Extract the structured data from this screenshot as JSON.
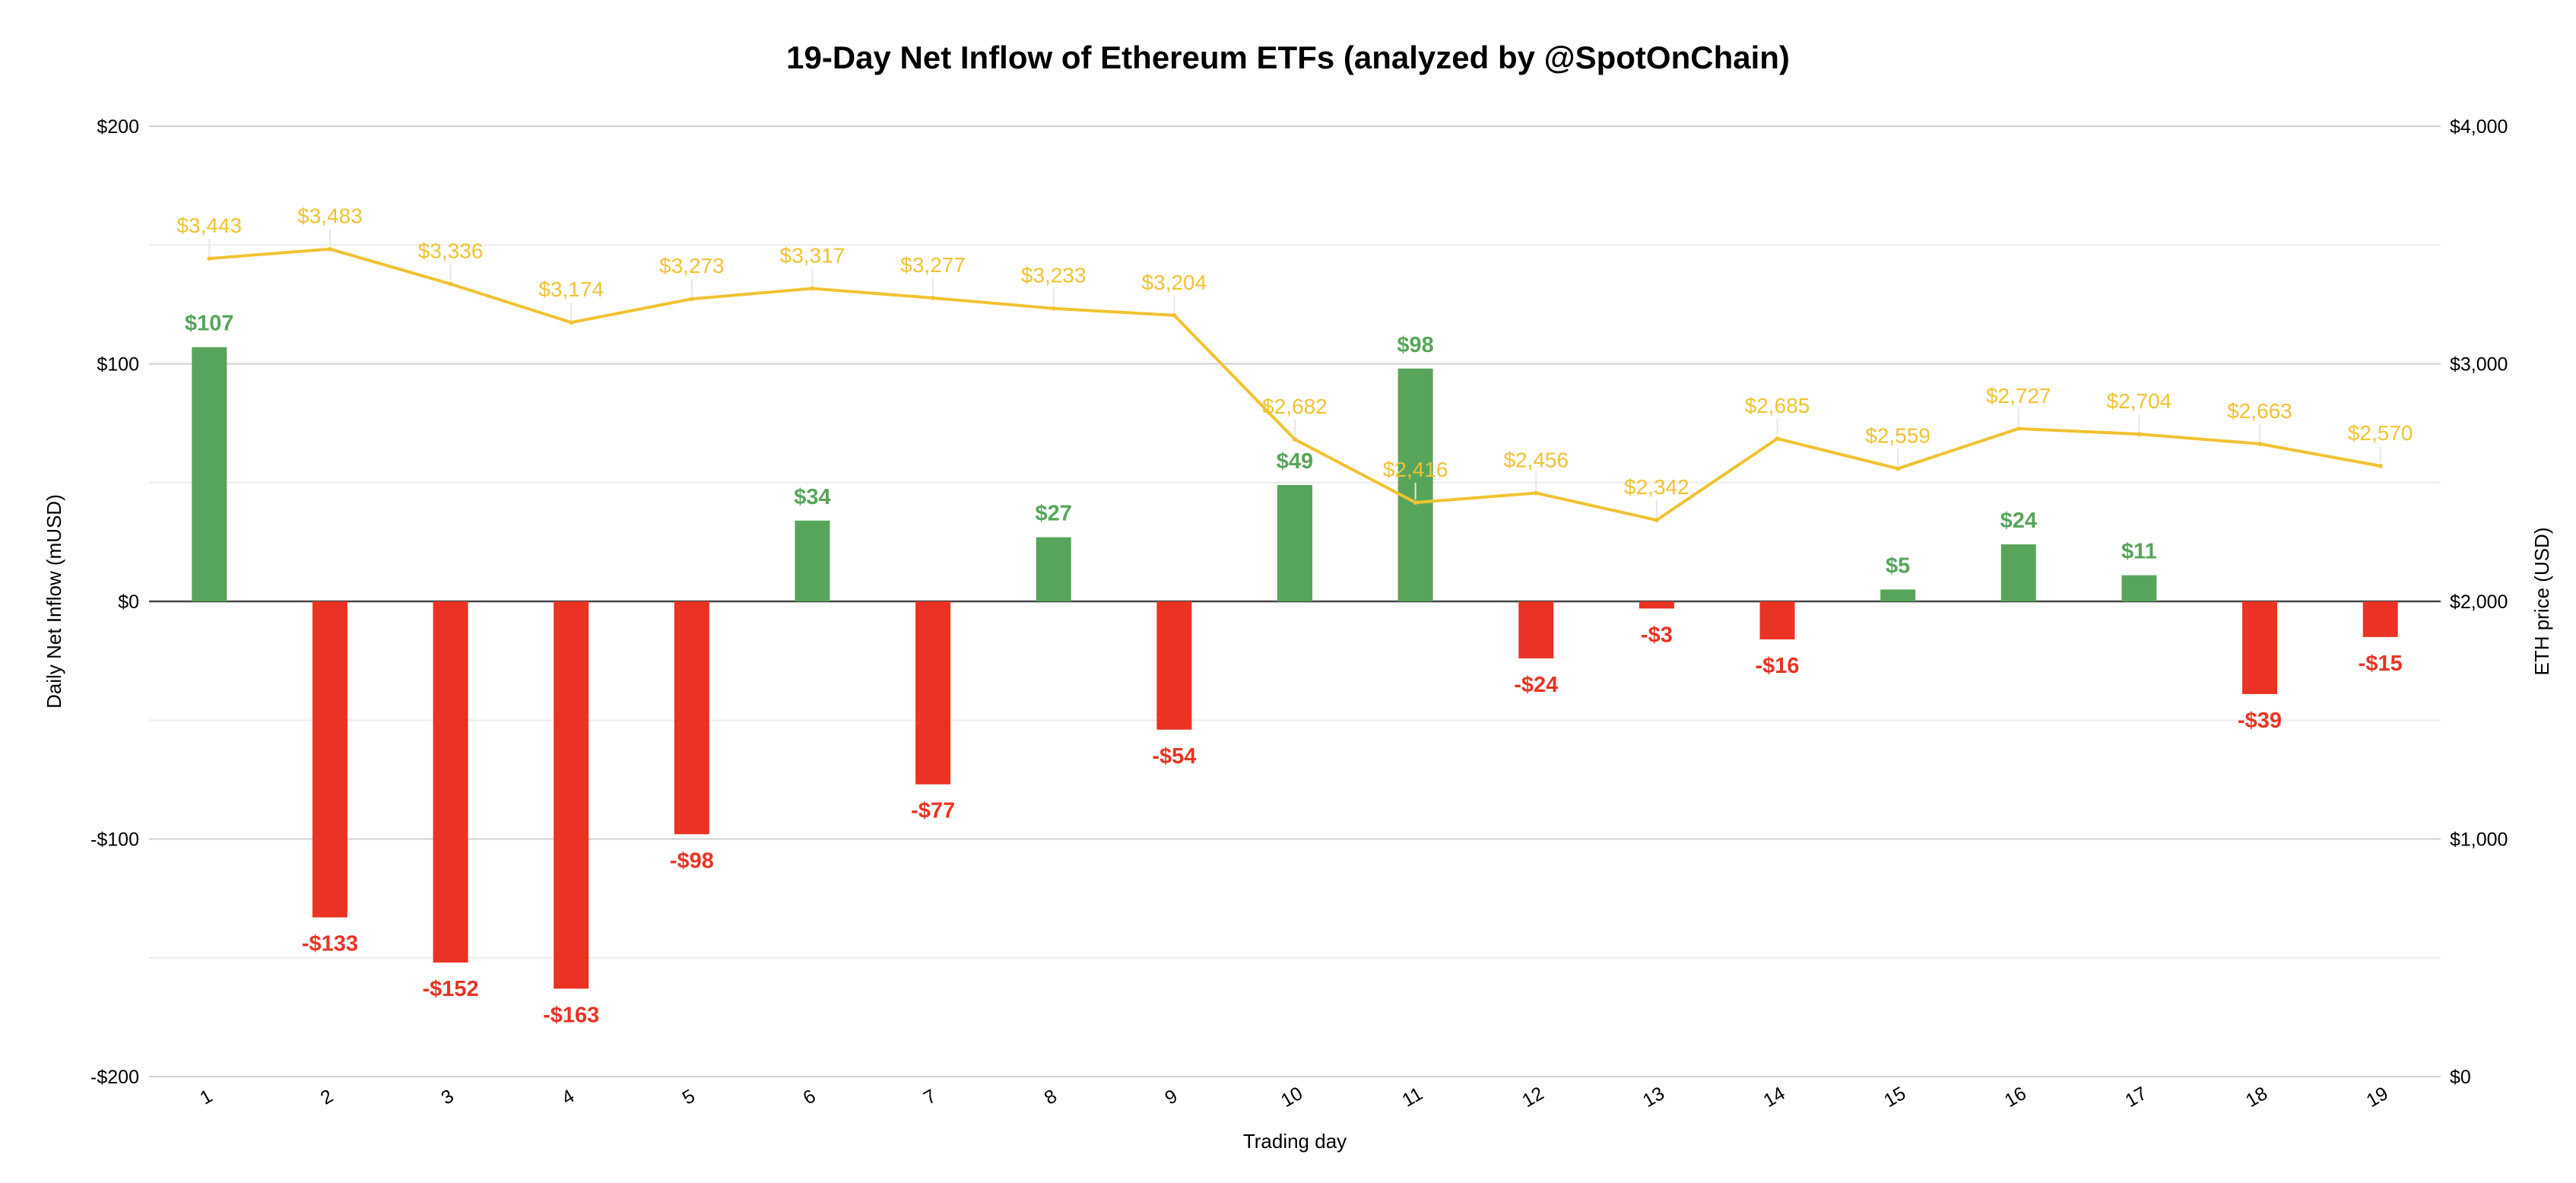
{
  "chart_data": {
    "type": "bar",
    "title": "19-Day Net Inflow of Ethereum ETFs (analyzed by @SpotOnChain)",
    "xlabel": "Trading day",
    "ylabel": "Daily Net Inflow (mUSD)",
    "y2label": "ETH price (USD)",
    "categories": [
      "1",
      "2",
      "3",
      "4",
      "5",
      "6",
      "7",
      "8",
      "9",
      "10",
      "11",
      "12",
      "13",
      "14",
      "15",
      "16",
      "17",
      "18",
      "19"
    ],
    "ylim": [
      -200,
      200
    ],
    "yticks": [
      -200,
      -100,
      0,
      100,
      200
    ],
    "ytick_labels": [
      "-$200",
      "-$100",
      "$0",
      "$100",
      "$200"
    ],
    "y2lim": [
      0,
      4000
    ],
    "y2ticks": [
      0,
      1000,
      2000,
      3000,
      4000
    ],
    "y2tick_labels": [
      "$0",
      "$1,000",
      "$2,000",
      "$3,000",
      "$4,000"
    ],
    "grid": true,
    "series": [
      {
        "type": "bar",
        "axis": "left",
        "values": [
          107,
          -133,
          -152,
          -163,
          -98,
          34,
          -77,
          27,
          -54,
          49,
          98,
          -24,
          -3,
          -16,
          5,
          24,
          11,
          -39,
          -15
        ],
        "labels": [
          "$107",
          "-$133",
          "-$152",
          "-$163",
          "-$98",
          "$34",
          "-$77",
          "$27",
          "-$54",
          "$49",
          "$98",
          "-$24",
          "-$3",
          "-$16",
          "$5",
          "$24",
          "$11",
          "-$39",
          "-$15"
        ],
        "positive_color": "#57a55a",
        "negative_color": "#ea3323"
      },
      {
        "type": "line",
        "axis": "right",
        "values": [
          3443,
          3483,
          3336,
          3174,
          3273,
          3317,
          3277,
          3233,
          3204,
          2682,
          2416,
          2456,
          2342,
          2685,
          2559,
          2727,
          2704,
          2663,
          2570
        ],
        "labels": [
          "$3,443",
          "$3,483",
          "$3,336",
          "$3,174",
          "$3,273",
          "$3,317",
          "$3,277",
          "$3,233",
          "$3,204",
          "$2,682",
          "$2,416",
          "$2,456",
          "$2,342",
          "$2,685",
          "$2,559",
          "$2,727",
          "$2,704",
          "$2,663",
          "$2,570"
        ],
        "color": "#f1c232"
      }
    ]
  }
}
